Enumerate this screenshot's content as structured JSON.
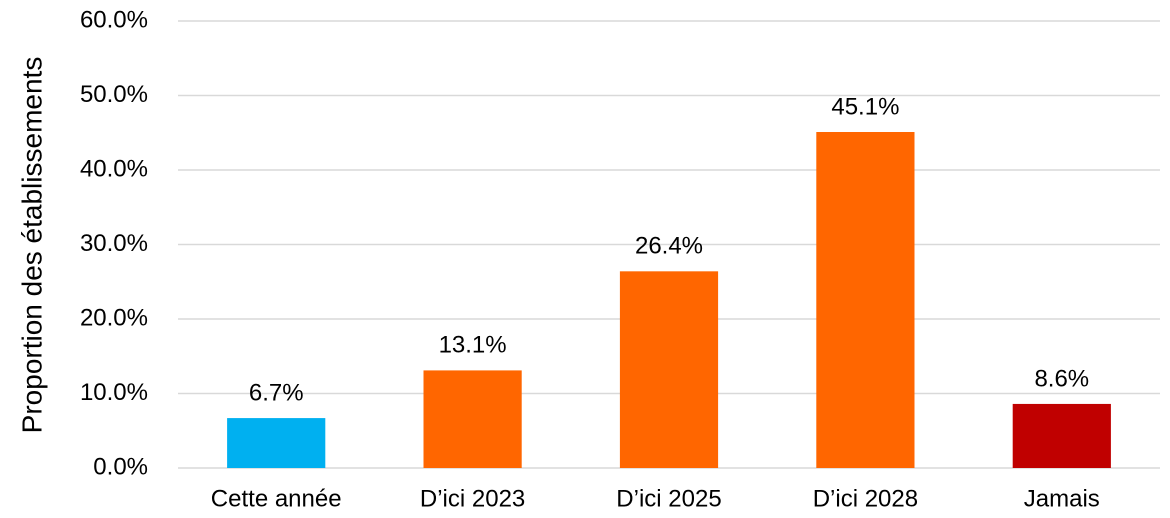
{
  "chart_data": {
    "type": "bar",
    "y_axis_label": "Proportion des établissements",
    "categories": [
      "Cette année",
      "D’ici 2023",
      "D’ici 2025",
      "D’ici 2028",
      "Jamais"
    ],
    "values": [
      6.7,
      13.1,
      26.4,
      45.1,
      8.6
    ],
    "value_labels": [
      "6.7%",
      "13.1%",
      "26.4%",
      "45.1%",
      "8.6%"
    ],
    "colors": [
      "#00b0f0",
      "#ff6600",
      "#ff6600",
      "#ff6600",
      "#c00000"
    ],
    "ylim": [
      0,
      60
    ],
    "yticks": [
      {
        "value": 0,
        "label": "0.0%"
      },
      {
        "value": 10,
        "label": "10.0%"
      },
      {
        "value": 20,
        "label": "20.0%"
      },
      {
        "value": 30,
        "label": "30.0%"
      },
      {
        "value": 40,
        "label": "40.0%"
      },
      {
        "value": 50,
        "label": "50.0%"
      },
      {
        "value": 60,
        "label": "60.0%"
      }
    ],
    "grid": true
  }
}
